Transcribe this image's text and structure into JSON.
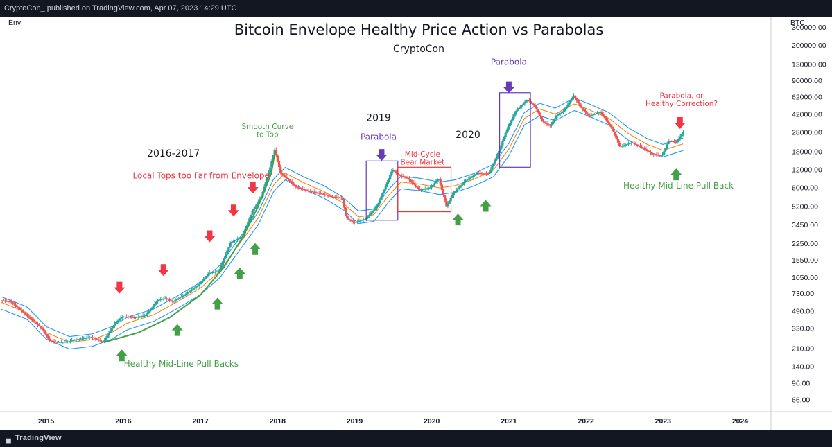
{
  "header": {
    "publisher_line": "CryptoCon_ published on TradingView.com, Apr 07, 2023 14:29 UTC"
  },
  "footer": {
    "brand": "TradingView",
    "logo_icon": "tradingview-logo-icon"
  },
  "chart_data": {
    "type": "candlestick",
    "title": "Bitcoin Envelope Healthy Price Action vs Parabolas",
    "subtitle": "CryptoCon",
    "indicator_label": "Env",
    "currency_label": "BTC",
    "y_scale": "log",
    "y_ticks": [
      "300000.00",
      "200000.00",
      "130000.00",
      "90000.00",
      "62000.00",
      "42000.00",
      "28000.00",
      "18000.00",
      "12000.00",
      "8000.00",
      "5200.00",
      "3450.00",
      "2250.00",
      "1550.00",
      "1050.00",
      "730.00",
      "490.00",
      "330.00",
      "210.00",
      "140.00",
      "96.00",
      "66.00"
    ],
    "x_ticks": [
      "2015",
      "2016",
      "2017",
      "2018",
      "2019",
      "2020",
      "2021",
      "2022",
      "2023",
      "2024"
    ],
    "xlim": [
      2014.4,
      2024.4
    ],
    "ylim": [
      50,
      380000
    ],
    "colors": {
      "up": "#26a69a",
      "down": "#ef5350",
      "mid_line": "#f57c00",
      "upper_band": "#2196f3",
      "lower_band": "#2196f3",
      "fit_curve": "#43a047",
      "bear_box": "#e53935",
      "parabola_box": "#673ab7",
      "green_arrow": "#43a047",
      "red_arrow": "#f23645",
      "purple_arrow": "#673ab7"
    },
    "price_path": [
      [
        2014.42,
        620
      ],
      [
        2014.55,
        600
      ],
      [
        2014.7,
        480
      ],
      [
        2014.85,
        380
      ],
      [
        2014.95,
        330
      ],
      [
        2015.05,
        250
      ],
      [
        2015.15,
        240
      ],
      [
        2015.3,
        245
      ],
      [
        2015.45,
        260
      ],
      [
        2015.6,
        270
      ],
      [
        2015.75,
        240
      ],
      [
        2015.9,
        370
      ],
      [
        2016.0,
        430
      ],
      [
        2016.15,
        420
      ],
      [
        2016.3,
        440
      ],
      [
        2016.45,
        620
      ],
      [
        2016.55,
        650
      ],
      [
        2016.65,
        600
      ],
      [
        2016.8,
        700
      ],
      [
        2017.0,
        900
      ],
      [
        2017.12,
        1150
      ],
      [
        2017.25,
        1200
      ],
      [
        2017.4,
        2300
      ],
      [
        2017.55,
        2600
      ],
      [
        2017.68,
        4600
      ],
      [
        2017.8,
        6500
      ],
      [
        2017.92,
        13000
      ],
      [
        2017.97,
        19000
      ],
      [
        2018.05,
        11000
      ],
      [
        2018.15,
        9500
      ],
      [
        2018.25,
        8000
      ],
      [
        2018.4,
        7400
      ],
      [
        2018.55,
        7000
      ],
      [
        2018.7,
        6500
      ],
      [
        2018.85,
        6300
      ],
      [
        2018.9,
        4000
      ],
      [
        2019.0,
        3600
      ],
      [
        2019.15,
        3900
      ],
      [
        2019.3,
        5200
      ],
      [
        2019.42,
        8500
      ],
      [
        2019.5,
        12000
      ],
      [
        2019.58,
        10500
      ],
      [
        2019.7,
        9800
      ],
      [
        2019.85,
        7500
      ],
      [
        2020.0,
        8000
      ],
      [
        2020.1,
        9800
      ],
      [
        2020.2,
        5200
      ],
      [
        2020.3,
        7200
      ],
      [
        2020.45,
        9300
      ],
      [
        2020.6,
        11000
      ],
      [
        2020.75,
        10800
      ],
      [
        2020.88,
        18000
      ],
      [
        2020.98,
        29000
      ],
      [
        2021.1,
        45000
      ],
      [
        2021.25,
        58000
      ],
      [
        2021.35,
        50000
      ],
      [
        2021.45,
        35000
      ],
      [
        2021.55,
        32000
      ],
      [
        2021.62,
        40000
      ],
      [
        2021.72,
        45000
      ],
      [
        2021.85,
        64000
      ],
      [
        2021.95,
        48000
      ],
      [
        2022.05,
        40000
      ],
      [
        2022.2,
        44000
      ],
      [
        2022.35,
        30000
      ],
      [
        2022.45,
        20000
      ],
      [
        2022.6,
        22000
      ],
      [
        2022.75,
        19500
      ],
      [
        2022.87,
        16800
      ],
      [
        2023.0,
        16500
      ],
      [
        2023.08,
        23000
      ],
      [
        2023.18,
        22000
      ],
      [
        2023.27,
        28000
      ]
    ],
    "envelope": {
      "mid": [
        [
          2014.42,
          590
        ],
        [
          2014.75,
          470
        ],
        [
          2015.0,
          300
        ],
        [
          2015.3,
          240
        ],
        [
          2015.6,
          255
        ],
        [
          2015.85,
          300
        ],
        [
          2016.05,
          370
        ],
        [
          2016.4,
          450
        ],
        [
          2016.7,
          600
        ],
        [
          2017.0,
          820
        ],
        [
          2017.25,
          1200
        ],
        [
          2017.5,
          2200
        ],
        [
          2017.75,
          4000
        ],
        [
          2017.95,
          8500
        ],
        [
          2018.1,
          11000
        ],
        [
          2018.35,
          8800
        ],
        [
          2018.6,
          7300
        ],
        [
          2018.85,
          5600
        ],
        [
          2019.05,
          4100
        ],
        [
          2019.25,
          4300
        ],
        [
          2019.45,
          6800
        ],
        [
          2019.6,
          9000
        ],
        [
          2019.85,
          8600
        ],
        [
          2020.1,
          7900
        ],
        [
          2020.3,
          8300
        ],
        [
          2020.55,
          9600
        ],
        [
          2020.8,
          11800
        ],
        [
          2021.0,
          19000
        ],
        [
          2021.2,
          38000
        ],
        [
          2021.4,
          47000
        ],
        [
          2021.6,
          42000
        ],
        [
          2021.85,
          53000
        ],
        [
          2022.05,
          46000
        ],
        [
          2022.3,
          38000
        ],
        [
          2022.55,
          27000
        ],
        [
          2022.8,
          21000
        ],
        [
          2023.0,
          18500
        ],
        [
          2023.27,
          21500
        ]
      ],
      "band_pct": 0.14
    },
    "fit_curve": [
      [
        2015.75,
        240
      ],
      [
        2016.2,
        300
      ],
      [
        2016.6,
        420
      ],
      [
        2017.0,
        700
      ],
      [
        2017.3,
        1300
      ],
      [
        2017.55,
        2600
      ],
      [
        2017.75,
        5200
      ],
      [
        2017.92,
        11000
      ],
      [
        2017.97,
        18500
      ]
    ],
    "boxes": [
      {
        "label": "parabola-2019",
        "x": [
          2019.15,
          2019.56
        ],
        "y": [
          3800,
          14500
        ],
        "color": "#673ab7"
      },
      {
        "label": "mid-cycle-bear",
        "x": [
          2019.56,
          2020.25
        ],
        "y": [
          4600,
          12600
        ],
        "color": "#e53935"
      },
      {
        "label": "parabola-2020",
        "x": [
          2020.88,
          2021.28
        ],
        "y": [
          12600,
          68000
        ],
        "color": "#673ab7"
      }
    ],
    "arrows": [
      {
        "dir": "down",
        "color": "red",
        "x": 2015.95,
        "y": 820
      },
      {
        "dir": "down",
        "color": "red",
        "x": 2016.52,
        "y": 1220
      },
      {
        "dir": "down",
        "color": "red",
        "x": 2017.12,
        "y": 2620
      },
      {
        "dir": "down",
        "color": "red",
        "x": 2017.43,
        "y": 4700
      },
      {
        "dir": "down",
        "color": "red",
        "x": 2017.68,
        "y": 7900
      },
      {
        "dir": "up",
        "color": "green",
        "x": 2015.98,
        "y": 180
      },
      {
        "dir": "up",
        "color": "green",
        "x": 2016.7,
        "y": 320
      },
      {
        "dir": "up",
        "color": "green",
        "x": 2017.22,
        "y": 580
      },
      {
        "dir": "up",
        "color": "green",
        "x": 2017.51,
        "y": 1150
      },
      {
        "dir": "up",
        "color": "green",
        "x": 2017.71,
        "y": 2000
      },
      {
        "dir": "up",
        "color": "green",
        "x": 2020.34,
        "y": 3900
      },
      {
        "dir": "up",
        "color": "green",
        "x": 2020.7,
        "y": 5300
      },
      {
        "dir": "up",
        "color": "green",
        "x": 2023.17,
        "y": 10800
      },
      {
        "dir": "down",
        "color": "purple",
        "x": 2019.35,
        "y": 16500
      },
      {
        "dir": "down",
        "color": "purple",
        "x": 2021.0,
        "y": 76000
      },
      {
        "dir": "down",
        "color": "red",
        "x": 2023.22,
        "y": 34000
      }
    ],
    "annotations": [
      {
        "lines": [
          "2016-2017"
        ],
        "color": "#131722",
        "size": 14,
        "x": 2016.65,
        "y": 16000
      },
      {
        "lines": [
          "Local Tops too Far from Envelope"
        ],
        "color": "#f23645",
        "size": 12,
        "x": 2017.01,
        "y": 9800
      },
      {
        "lines": [
          "Smooth Curve",
          "to Top"
        ],
        "color": "#43a047",
        "size": 10.5,
        "x": 2017.87,
        "y": 30000
      },
      {
        "lines": [
          "2019"
        ],
        "color": "#131722",
        "size": 14,
        "x": 2019.31,
        "y": 36000
      },
      {
        "lines": [
          "Parabola"
        ],
        "color": "#673ab7",
        "size": 12,
        "x": 2019.31,
        "y": 23500
      },
      {
        "lines": [
          "Mid-Cycle",
          "Bear Market"
        ],
        "color": "#f23645",
        "size": 10.5,
        "x": 2019.88,
        "y": 16000
      },
      {
        "lines": [
          "2020"
        ],
        "color": "#131722",
        "size": 14,
        "x": 2020.47,
        "y": 24500
      },
      {
        "lines": [
          "Parabola"
        ],
        "color": "#673ab7",
        "size": 12,
        "x": 2021.0,
        "y": 128000
      },
      {
        "lines": [
          "Parabola, or",
          "Healthy Correction?"
        ],
        "color": "#f23645",
        "size": 10.5,
        "x": 2023.24,
        "y": 60000
      },
      {
        "lines": [
          "Healthy Mid-Line Pull Back"
        ],
        "color": "#43a047",
        "size": 12,
        "x": 2023.2,
        "y": 7800
      },
      {
        "lines": [
          "Healthy Mid-Line Pull Backs"
        ],
        "color": "#43a047",
        "size": 12,
        "x": 2016.75,
        "y": 138
      }
    ]
  }
}
